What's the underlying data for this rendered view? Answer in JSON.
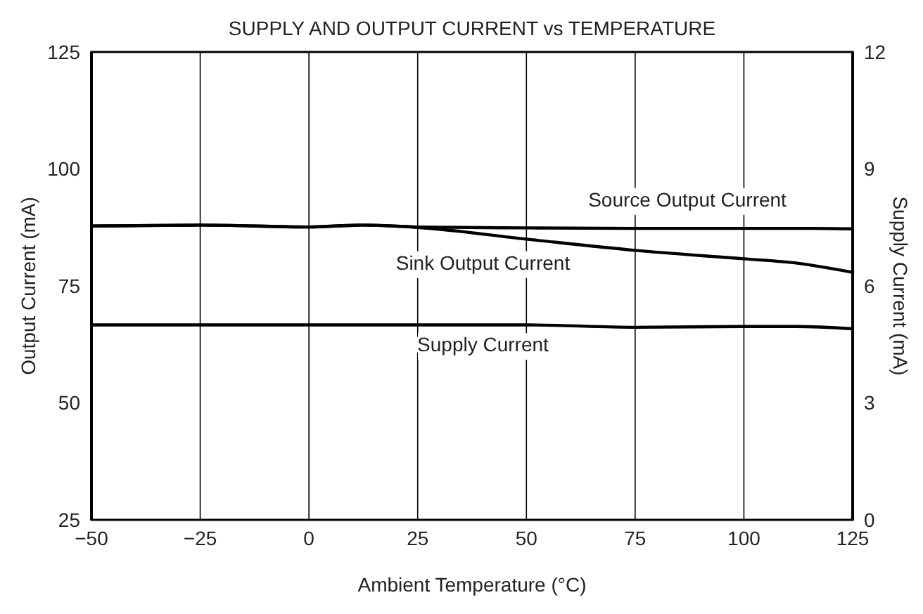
{
  "chart_data": {
    "type": "line",
    "title": "SUPPLY AND OUTPUT CURRENT vs TEMPERATURE",
    "xlabel": "Ambient Temperature (°C)",
    "ylabel": "Output Current (mA)",
    "y2label": "Supply Current (mA)",
    "x": [
      -50,
      -25,
      0,
      12,
      25,
      50,
      75,
      100,
      112,
      125
    ],
    "series": [
      {
        "name": "Source Output Current",
        "color": "#000000",
        "values": [
          87.8,
          88.0,
          87.6,
          88.0,
          87.6,
          87.4,
          87.3,
          87.3,
          87.3,
          87.2
        ]
      },
      {
        "name": "Sink Output Current",
        "color": "#000000",
        "values": [
          87.8,
          88.0,
          87.6,
          88.0,
          87.5,
          85.0,
          82.6,
          80.8,
          79.9,
          77.9
        ]
      },
      {
        "name": "Supply Current",
        "color": "#000000",
        "axis": "y2",
        "values": [
          5.0,
          5.0,
          5.0,
          5.0,
          5.0,
          5.0,
          4.94,
          4.96,
          4.96,
          4.9
        ]
      }
    ],
    "xlim": [
      -50,
      125
    ],
    "xticks": [
      {
        "value": -50,
        "label": "−50"
      },
      {
        "value": -25,
        "label": "−25"
      },
      0,
      25,
      50,
      75,
      100,
      125
    ],
    "ylim": [
      25,
      125
    ],
    "yticks": [
      25,
      50,
      75,
      100,
      125
    ],
    "y2lim": [
      0,
      12
    ],
    "y2ticks": [
      0,
      3,
      6,
      9,
      12
    ],
    "grid": true,
    "marker": "none",
    "line_style": "solid"
  }
}
